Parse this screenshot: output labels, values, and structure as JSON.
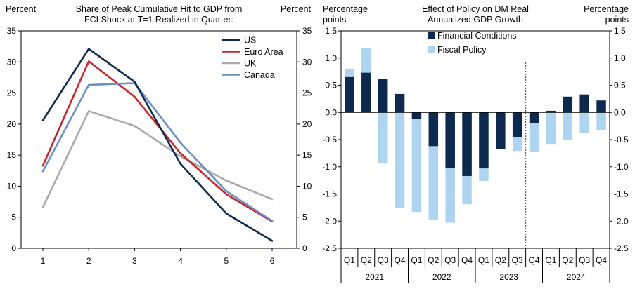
{
  "chart_data": [
    {
      "type": "line",
      "title": "Share of Peak Cumulative  Hit to GDP from FCI Shock at T=1 Realized in Quarter:",
      "title_lines": [
        "Share of Peak Cumulative  Hit to GDP from",
        "FCI Shock at T=1 Realized in Quarter:"
      ],
      "ylabel_left": "Percent",
      "ylabel_right": "Percent",
      "x": [
        1,
        2,
        3,
        4,
        5,
        6
      ],
      "xlabels": [
        "1",
        "2",
        "3",
        "4",
        "5",
        "6"
      ],
      "ylim": [
        0,
        35
      ],
      "yticks": [
        0,
        5,
        10,
        15,
        20,
        25,
        30,
        35
      ],
      "legend_position": "top-right",
      "series": [
        {
          "name": "US",
          "color": "#0d2a4e",
          "values": [
            20.6,
            32.1,
            26.8,
            13.6,
            5.6,
            1.2
          ]
        },
        {
          "name": "Euro Area",
          "color": "#c8252c",
          "values": [
            13.3,
            30.1,
            24.4,
            15.3,
            8.7,
            4.3
          ]
        },
        {
          "name": "UK",
          "color": "#a9a9a9",
          "values": [
            6.6,
            22.1,
            19.7,
            14.8,
            10.9,
            7.9
          ]
        },
        {
          "name": "Canada",
          "color": "#6a8fc4",
          "values": [
            12.4,
            26.3,
            26.6,
            17.0,
            9.2,
            4.4
          ]
        }
      ]
    },
    {
      "type": "bar",
      "stacked": false,
      "title": "Effect of Policy on DM Real Annualized GDP Growth",
      "title_lines": [
        "Effect of Policy on DM Real",
        "Annualized GDP Growth"
      ],
      "ylabel_left": [
        "Percentage",
        "points"
      ],
      "ylabel_right": [
        "Percentage",
        "points"
      ],
      "categories": [
        "Q1",
        "Q2",
        "Q3",
        "Q4",
        "Q1",
        "Q2",
        "Q3",
        "Q4",
        "Q1",
        "Q2",
        "Q3",
        "Q4",
        "Q1",
        "Q2",
        "Q3",
        "Q4"
      ],
      "years": [
        "2021",
        "2022",
        "2023",
        "2024"
      ],
      "ylim": [
        -2.5,
        1.5
      ],
      "yticks": [
        1.5,
        1.0,
        0.5,
        0.0,
        -0.5,
        -1.0,
        -1.5,
        -2.0,
        -2.5
      ],
      "ytick_labels": [
        "1.5",
        "1.0",
        "0.5",
        "0.0",
        "-0.5",
        "-1.0",
        "-1.5",
        "-2.0",
        "-2.5"
      ],
      "forecast_divider_after_index": 10,
      "legend_position": "top-center",
      "series": [
        {
          "name": "Financial Conditions",
          "color": "#0d2a4e",
          "values": [
            0.65,
            0.73,
            0.62,
            0.34,
            -0.12,
            -0.62,
            -1.02,
            -1.17,
            -1.03,
            -0.68,
            -0.45,
            -0.2,
            0.03,
            0.29,
            0.33,
            0.22
          ]
        },
        {
          "name": "Fiscal Policy",
          "color": "#aed4ef",
          "values": [
            0.79,
            1.18,
            -0.94,
            -1.76,
            -1.83,
            -1.98,
            -2.03,
            -1.69,
            -1.26,
            -0.68,
            -0.71,
            -0.73,
            -0.58,
            -0.5,
            -0.38,
            -0.33
          ]
        }
      ]
    }
  ]
}
